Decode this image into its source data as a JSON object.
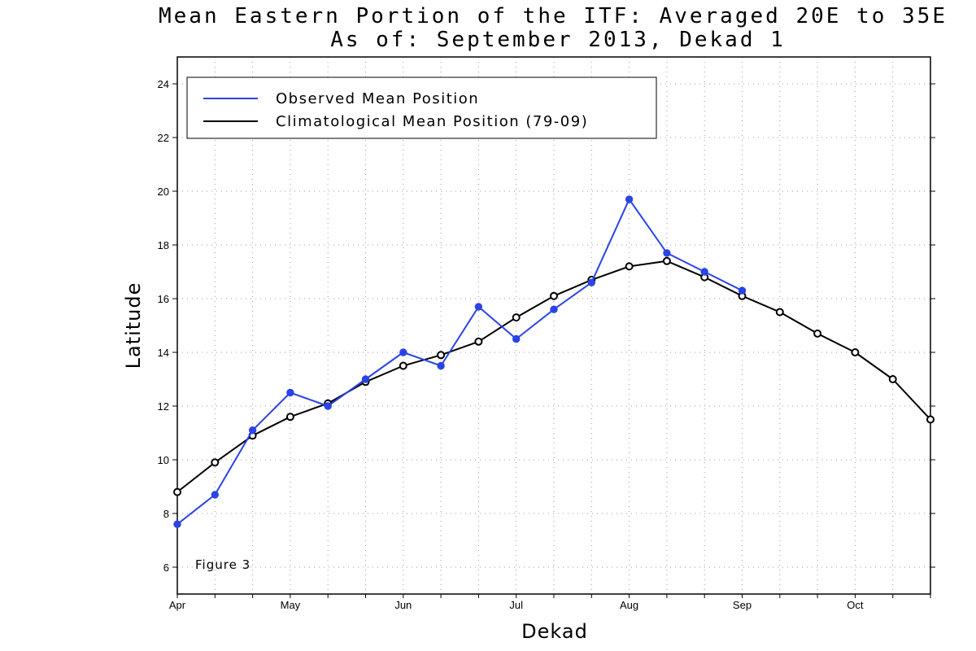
{
  "chart_data": {
    "type": "line",
    "title": "Mean Eastern Portion of the ITF: Averaged 20E to 35E",
    "subtitle": "As of: September 2013, Dekad 1",
    "xlabel": "Dekad",
    "ylabel": "Latitude",
    "annotation": "Figure 3",
    "ylim": [
      5,
      25
    ],
    "yticks": [
      6,
      8,
      10,
      12,
      14,
      16,
      18,
      20,
      22,
      24
    ],
    "x_dekads": [
      "Apr 1",
      "Apr 2",
      "Apr 3",
      "May 1",
      "May 2",
      "May 3",
      "Jun 1",
      "Jun 2",
      "Jun 3",
      "Jul 1",
      "Jul 2",
      "Jul 3",
      "Aug 1",
      "Aug 2",
      "Aug 3",
      "Sep 1",
      "Sep 2",
      "Sep 3",
      "Oct 1",
      "Oct 2",
      "Oct 3"
    ],
    "month_labels": [
      "Apr",
      "May",
      "Jun",
      "Jul",
      "Aug",
      "Sep",
      "Oct"
    ],
    "grid": true,
    "legend_position": "top-left",
    "series": [
      {
        "name": "Observed Mean Position",
        "color": "#2a44e6",
        "marker": "filled-circle",
        "values": [
          7.6,
          8.7,
          11.1,
          12.5,
          12.0,
          13.0,
          14.0,
          13.5,
          15.7,
          14.5,
          15.6,
          16.6,
          19.7,
          17.7,
          17.0,
          16.3
        ]
      },
      {
        "name": "Climatological Mean Position (79-09)",
        "color": "#000000",
        "marker": "open-circle",
        "values": [
          8.8,
          9.9,
          10.9,
          11.6,
          12.1,
          12.9,
          13.5,
          13.9,
          14.4,
          15.3,
          16.1,
          16.7,
          17.2,
          17.4,
          16.8,
          16.1,
          15.5,
          14.7,
          14.0,
          13.0,
          11.5
        ]
      }
    ]
  }
}
